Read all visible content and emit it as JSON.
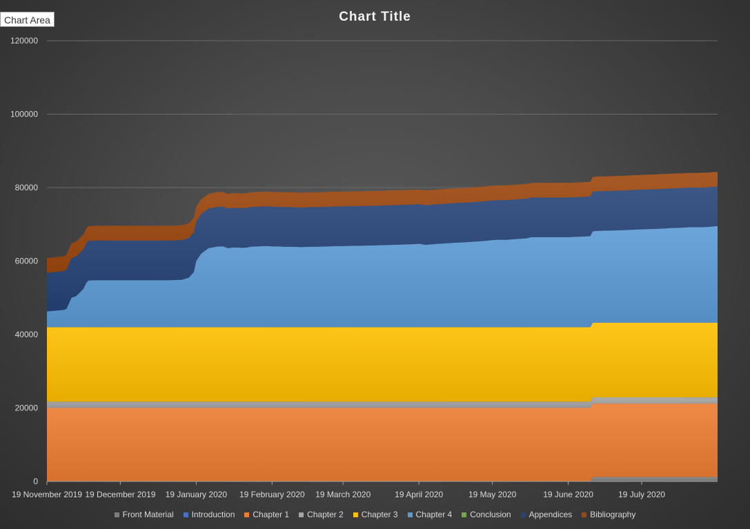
{
  "chart_area_label": "Chart Area",
  "chart_data": {
    "type": "area",
    "stacked": true,
    "title": "Chart Title",
    "xlabel": "",
    "ylabel": "",
    "ylim": [
      0,
      120000
    ],
    "yticks": [
      0,
      20000,
      40000,
      60000,
      80000,
      100000,
      120000
    ],
    "ytick_labels": [
      "0",
      "20000",
      "40000",
      "60000",
      "80000",
      "100000",
      "120000"
    ],
    "xlim_days": [
      0,
      274
    ],
    "xticks_days": [
      0,
      30,
      61,
      92,
      121,
      152,
      182,
      213,
      243
    ],
    "xtick_labels": [
      "19 November 2019",
      "19 December 2019",
      "19 January 2020",
      "19 February 2020",
      "19 March 2020",
      "19 April 2020",
      "19 May 2020",
      "19 June 2020",
      "19 July 2020"
    ],
    "grid": "horizontal",
    "legend_position": "bottom",
    "x_days": [
      0,
      7,
      8,
      10,
      12,
      15,
      16,
      17,
      20,
      30,
      45,
      50,
      55,
      58,
      60,
      61,
      62,
      63,
      66,
      70,
      72,
      74,
      76,
      80,
      82,
      83,
      86,
      90,
      92,
      94,
      97,
      100,
      104,
      108,
      111,
      114,
      120,
      130,
      140,
      150,
      152,
      155,
      156,
      160,
      167,
      171,
      175,
      179,
      182,
      184,
      188,
      192,
      196,
      198,
      213,
      220,
      222,
      223,
      225,
      230,
      235,
      238,
      241,
      245,
      250,
      253,
      255,
      260,
      262,
      266,
      270,
      272,
      274
    ],
    "series": [
      {
        "name": "Front Material",
        "color": "#7f7f7f",
        "values": [
          0,
          0,
          0,
          0,
          0,
          0,
          0,
          0,
          0,
          0,
          0,
          0,
          0,
          0,
          0,
          0,
          0,
          0,
          0,
          0,
          0,
          0,
          0,
          0,
          0,
          0,
          0,
          0,
          0,
          0,
          0,
          0,
          0,
          0,
          0,
          0,
          0,
          0,
          0,
          0,
          0,
          0,
          0,
          0,
          0,
          0,
          0,
          0,
          0,
          0,
          0,
          0,
          0,
          0,
          0,
          0,
          0,
          1200,
          1200,
          1200,
          1200,
          1200,
          1200,
          1200,
          1200,
          1200,
          1200,
          1200,
          1200,
          1200,
          1200,
          1200,
          1200
        ]
      },
      {
        "name": "Introduction",
        "color": "#4472c4",
        "values": [
          0,
          0,
          0,
          0,
          0,
          0,
          0,
          0,
          0,
          0,
          0,
          0,
          0,
          0,
          0,
          0,
          0,
          0,
          0,
          0,
          0,
          0,
          0,
          0,
          0,
          0,
          0,
          0,
          0,
          0,
          0,
          0,
          0,
          0,
          0,
          0,
          0,
          0,
          0,
          0,
          0,
          0,
          0,
          0,
          0,
          0,
          0,
          0,
          0,
          0,
          0,
          0,
          0,
          0,
          0,
          0,
          0,
          0,
          0,
          0,
          0,
          0,
          0,
          0,
          0,
          0,
          0,
          0,
          0,
          0,
          0,
          0,
          0
        ]
      },
      {
        "name": "Chapter 1",
        "color": "#ed7d31",
        "values": [
          20000,
          20000,
          20000,
          20000,
          20000,
          20000,
          20000,
          20000,
          20000,
          20000,
          20000,
          20000,
          20000,
          20000,
          20000,
          20000,
          20000,
          20000,
          20000,
          20000,
          20000,
          20000,
          20000,
          20000,
          20000,
          20000,
          20000,
          20000,
          20000,
          20000,
          20000,
          20000,
          20000,
          20000,
          20000,
          20000,
          20000,
          20000,
          20000,
          20000,
          20000,
          20000,
          20000,
          20000,
          20000,
          20000,
          20000,
          20000,
          20000,
          20000,
          20000,
          20000,
          20000,
          20000,
          20000,
          20000,
          20000,
          20000,
          20000,
          20000,
          20000,
          20000,
          20000,
          20000,
          20000,
          20000,
          20000,
          20000,
          20000,
          20000,
          20000,
          20000,
          20000
        ]
      },
      {
        "name": "Chapter 2",
        "color": "#a5a5a5",
        "values": [
          1700,
          1700,
          1700,
          1700,
          1700,
          1700,
          1700,
          1700,
          1700,
          1700,
          1700,
          1700,
          1700,
          1700,
          1700,
          1700,
          1700,
          1700,
          1700,
          1700,
          1700,
          1700,
          1700,
          1700,
          1700,
          1700,
          1700,
          1700,
          1700,
          1700,
          1700,
          1700,
          1700,
          1700,
          1700,
          1700,
          1700,
          1700,
          1700,
          1700,
          1700,
          1700,
          1700,
          1700,
          1700,
          1700,
          1700,
          1700,
          1700,
          1700,
          1700,
          1700,
          1700,
          1700,
          1700,
          1700,
          1700,
          1700,
          1700,
          1700,
          1700,
          1700,
          1700,
          1700,
          1700,
          1700,
          1700,
          1700,
          1700,
          1700,
          1700,
          1700,
          1700
        ]
      },
      {
        "name": "Chapter 3",
        "color": "#ffc000",
        "values": [
          20300,
          20300,
          20300,
          20300,
          20300,
          20300,
          20300,
          20300,
          20300,
          20300,
          20300,
          20300,
          20300,
          20300,
          20300,
          20300,
          20300,
          20300,
          20300,
          20300,
          20300,
          20300,
          20300,
          20300,
          20300,
          20300,
          20300,
          20300,
          20300,
          20300,
          20300,
          20300,
          20300,
          20300,
          20300,
          20300,
          20300,
          20300,
          20300,
          20300,
          20300,
          20300,
          20300,
          20300,
          20300,
          20300,
          20300,
          20300,
          20300,
          20300,
          20300,
          20300,
          20300,
          20300,
          20300,
          20300,
          20300,
          20300,
          20300,
          20300,
          20300,
          20300,
          20300,
          20300,
          20300,
          20300,
          20300,
          20300,
          20300,
          20300,
          20300,
          20300,
          20300
        ]
      },
      {
        "name": "Chapter 4",
        "color": "#5b9bd5",
        "values": [
          4300,
          4700,
          5000,
          8000,
          8500,
          10500,
          12000,
          12700,
          12800,
          12800,
          12800,
          12800,
          12900,
          13500,
          15000,
          18000,
          19000,
          20000,
          21500,
          22000,
          22000,
          21500,
          21700,
          21600,
          21700,
          21900,
          22000,
          22100,
          22000,
          22000,
          21900,
          21900,
          21800,
          21900,
          21900,
          22000,
          22100,
          22200,
          22400,
          22600,
          22700,
          22400,
          22500,
          22700,
          23000,
          23100,
          23300,
          23500,
          23700,
          23800,
          23800,
          24000,
          24200,
          24500,
          24500,
          24700,
          24800,
          24900,
          25000,
          25100,
          25200,
          25300,
          25400,
          25500,
          25600,
          25700,
          25800,
          25900,
          26000,
          26000,
          26100,
          26200,
          26300
        ]
      },
      {
        "name": "Conclusion",
        "color": "#70ad47",
        "values": [
          0,
          0,
          0,
          0,
          0,
          0,
          0,
          0,
          0,
          0,
          0,
          0,
          0,
          0,
          0,
          0,
          0,
          0,
          0,
          0,
          0,
          0,
          0,
          0,
          0,
          0,
          0,
          0,
          0,
          0,
          0,
          0,
          0,
          0,
          0,
          0,
          0,
          0,
          0,
          0,
          0,
          0,
          0,
          0,
          0,
          0,
          0,
          0,
          0,
          0,
          0,
          0,
          0,
          0,
          0,
          0,
          0,
          0,
          0,
          0,
          0,
          0,
          0,
          0,
          0,
          0,
          0,
          0,
          0,
          0,
          0,
          0,
          0
        ]
      },
      {
        "name": "Appendices",
        "color": "#264478",
        "values": [
          10500,
          10600,
          10700,
          10800,
          10800,
          10800,
          10800,
          10800,
          10800,
          10800,
          10800,
          10800,
          10800,
          10800,
          10800,
          10800,
          10800,
          10800,
          10800,
          10800,
          10800,
          10800,
          10800,
          10800,
          10800,
          10800,
          10800,
          10800,
          10800,
          10800,
          10800,
          10800,
          10800,
          10800,
          10800,
          10800,
          10800,
          10800,
          10800,
          10800,
          10800,
          10800,
          10800,
          10800,
          10800,
          10800,
          10800,
          10800,
          10800,
          10800,
          10800,
          10800,
          10800,
          10800,
          10800,
          10800,
          10800,
          10800,
          10800,
          10800,
          10800,
          10800,
          10800,
          10800,
          10800,
          10800,
          10800,
          10800,
          10800,
          10800,
          10800,
          10800,
          10800
        ]
      },
      {
        "name": "Bibliography",
        "color": "#9e480e",
        "values": [
          4000,
          4000,
          4000,
          4000,
          4000,
          4000,
          4000,
          4000,
          4000,
          4000,
          4000,
          4000,
          4000,
          4000,
          4000,
          4000,
          4000,
          4000,
          4000,
          4000,
          4000,
          4000,
          4000,
          4000,
          4000,
          4000,
          4000,
          4000,
          4000,
          4000,
          4000,
          4000,
          4000,
          4000,
          4000,
          4000,
          4000,
          4000,
          4000,
          4000,
          4000,
          4000,
          4000,
          4000,
          4000,
          4000,
          4000,
          4000,
          4000,
          4000,
          4000,
          4000,
          4000,
          4000,
          4000,
          4000,
          4000,
          4000,
          4000,
          4000,
          4000,
          4000,
          4000,
          4000,
          4000,
          4000,
          4000,
          4000,
          4000,
          4000,
          4000,
          4000,
          4000
        ]
      }
    ]
  }
}
